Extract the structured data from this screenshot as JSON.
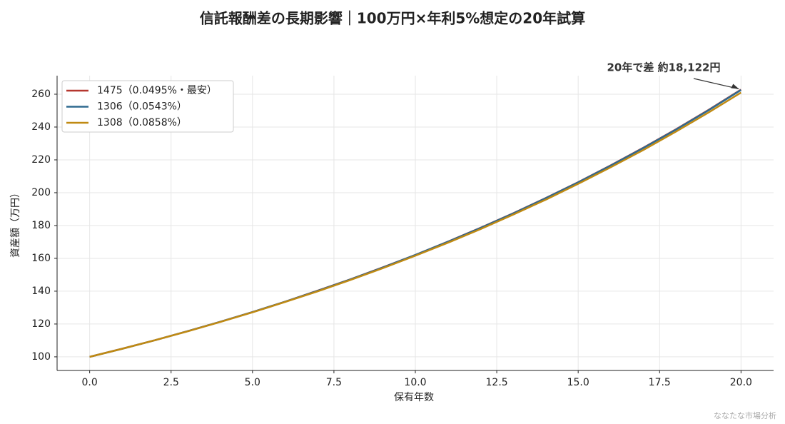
{
  "chart_data": {
    "type": "line",
    "title": "信託報酬差の長期影響｜100万円×年利5%想定の20年試算",
    "x_label": "保有年数",
    "y_label": "資産額（万円）",
    "annotation": "20年で差 約18,122円",
    "source": "ななたな市場分析",
    "x": [
      0,
      1,
      2,
      3,
      4,
      5,
      6,
      7,
      8,
      9,
      10,
      11,
      12,
      13,
      14,
      15,
      16,
      17,
      18,
      19,
      20
    ],
    "series": [
      {
        "name": "1475（0.0495%・最安）",
        "color": "#b5372f",
        "values": [
          100,
          105.0,
          110.1,
          115.6,
          121.3,
          127.3,
          133.6,
          140.3,
          147.2,
          154.5,
          162.1,
          170.2,
          178.6,
          187.4,
          196.7,
          206.4,
          216.7,
          227.4,
          238.6,
          250.4,
          262.8
        ]
      },
      {
        "name": "1306（0.0543%）",
        "color": "#2e6a8f",
        "values": [
          100,
          104.9,
          110.1,
          115.6,
          121.3,
          127.3,
          133.6,
          140.2,
          147.1,
          154.4,
          162.1,
          170.1,
          178.5,
          187.3,
          196.6,
          206.3,
          216.5,
          227.2,
          238.4,
          250.2,
          262.6
        ]
      },
      {
        "name": "1308（0.0858%）",
        "color": "#c08a12",
        "values": [
          100,
          104.9,
          110.1,
          115.5,
          121.2,
          127.1,
          133.4,
          139.9,
          146.8,
          154.0,
          161.6,
          169.5,
          177.8,
          186.6,
          195.7,
          205.4,
          215.5,
          226.0,
          237.2,
          248.8,
          261.0
        ]
      }
    ],
    "xlim": [
      -1,
      21
    ],
    "xticks": [
      {
        "value": 0,
        "label": "0.0"
      },
      2.5,
      {
        "value": 5,
        "label": "5.0"
      },
      7.5,
      {
        "value": 10,
        "label": "10.0"
      },
      12.5,
      {
        "value": 15,
        "label": "15.0"
      },
      17.5,
      {
        "value": 20,
        "label": "20.0"
      }
    ],
    "ylim": [
      91.7,
      271.3
    ],
    "yticks": [
      100,
      120,
      140,
      160,
      180,
      200,
      220,
      240,
      260
    ],
    "grid": true,
    "legend": "upper-left"
  }
}
